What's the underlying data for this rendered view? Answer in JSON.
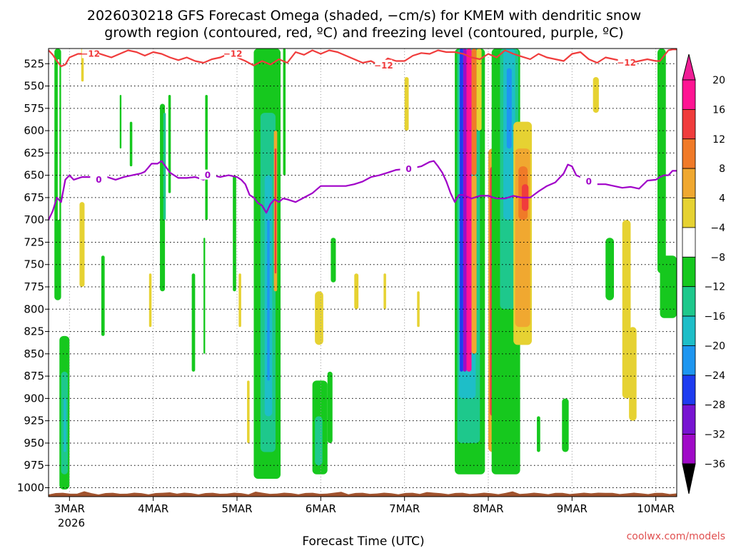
{
  "chart_data": {
    "type": "heatmap",
    "title_line1": "2026030218 GFS Forecast Omega (shaded, −cm/s) for KMEM with dendritic snow",
    "title_line2": "growth region (contoured, red, ºC) and freezing level (contoured, purple, ºC)",
    "xlabel": "Forecast Time (UTC)",
    "credit": "coolwx.com/models",
    "x_day_range": [
      2.75,
      10.25
    ],
    "y_range_hpa": [
      508,
      1010
    ],
    "y_ticks": [
      {
        "value": 525,
        "label": "525"
      },
      {
        "value": 550,
        "label": "550"
      },
      {
        "value": 575,
        "label": "575"
      },
      {
        "value": 600,
        "label": "600"
      },
      {
        "value": 625,
        "label": "625"
      },
      {
        "value": 650,
        "label": "650"
      },
      {
        "value": 675,
        "label": "675"
      },
      {
        "value": 700,
        "label": "700"
      },
      {
        "value": 725,
        "label": "725"
      },
      {
        "value": 750,
        "label": "750"
      },
      {
        "value": 775,
        "label": "775"
      },
      {
        "value": 800,
        "label": "800"
      },
      {
        "value": 825,
        "label": "825"
      },
      {
        "value": 850,
        "label": "850"
      },
      {
        "value": 875,
        "label": "875"
      },
      {
        "value": 900,
        "label": "900"
      },
      {
        "value": 925,
        "label": "925"
      },
      {
        "value": 950,
        "label": "950"
      },
      {
        "value": 975,
        "label": "975"
      },
      {
        "value": 1000,
        "label": "1000"
      }
    ],
    "x_ticks": [
      {
        "day": 3,
        "label": "3MAR"
      },
      {
        "day": 4,
        "label": "4MAR"
      },
      {
        "day": 5,
        "label": "5MAR"
      },
      {
        "day": 6,
        "label": "6MAR"
      },
      {
        "day": 7,
        "label": "7MAR"
      },
      {
        "day": 8,
        "label": "8MAR"
      },
      {
        "day": 9,
        "label": "9MAR"
      },
      {
        "day": 10,
        "label": "10MAR"
      }
    ],
    "x_year_label": "2026",
    "colorbar": {
      "labels": [
        "20",
        "16",
        "12",
        "8",
        "4",
        "−4",
        "−8",
        "−12",
        "−16",
        "−20",
        "−24",
        "−28",
        "−32",
        "−36"
      ],
      "colors": [
        "#ff1493",
        "#f03c3c",
        "#f07a28",
        "#f0a830",
        "#e6d232",
        "#ffffff",
        "#16c81e",
        "#1ec88c",
        "#1ebec8",
        "#1e96f0",
        "#1e3cf0",
        "#7814d2",
        "#a00ac8",
        "#a0a0a0"
      ],
      "top_arrow_color": "#f01e96",
      "bottom_arrow_color": "#000000"
    },
    "freezing_level": {
      "name": "freezing level (0 ºC, purple)",
      "color": "#a000c8",
      "label": "0",
      "label_days": [
        3.35,
        4.65,
        7.05,
        9.2
      ],
      "days": [
        2.75,
        2.8,
        2.85,
        2.9,
        2.95,
        3.0,
        3.05,
        3.15,
        3.25,
        3.35,
        3.45,
        3.55,
        3.65,
        3.75,
        3.85,
        3.9,
        3.98,
        4.05,
        4.1,
        4.2,
        4.3,
        4.4,
        4.5,
        4.6,
        4.7,
        4.8,
        4.9,
        5.0,
        5.05,
        5.1,
        5.15,
        5.2,
        5.25,
        5.3,
        5.35,
        5.4,
        5.45,
        5.5,
        5.55,
        5.6,
        5.7,
        5.8,
        5.9,
        6.0,
        6.1,
        6.2,
        6.3,
        6.4,
        6.5,
        6.6,
        6.7,
        6.8,
        6.9,
        7.0,
        7.1,
        7.2,
        7.3,
        7.35,
        7.4,
        7.45,
        7.5,
        7.55,
        7.6,
        7.65,
        7.7,
        7.8,
        7.9,
        8.0,
        8.1,
        8.2,
        8.3,
        8.4,
        8.5,
        8.6,
        8.7,
        8.8,
        8.9,
        8.95,
        9.0,
        9.05,
        9.1,
        9.2,
        9.3,
        9.4,
        9.5,
        9.6,
        9.7,
        9.8,
        9.9,
        10.0,
        10.05,
        10.1,
        10.15,
        10.2,
        10.25
      ],
      "hpa": [
        700,
        690,
        675,
        680,
        655,
        650,
        655,
        652,
        652,
        655,
        652,
        655,
        652,
        650,
        648,
        646,
        637,
        637,
        634,
        647,
        653,
        653,
        652,
        655,
        650,
        652,
        650,
        652,
        655,
        660,
        672,
        675,
        681,
        684,
        692,
        682,
        677,
        680,
        676,
        677,
        680,
        675,
        670,
        662,
        662,
        662,
        662,
        660,
        657,
        652,
        650,
        647,
        644,
        643,
        642,
        640,
        635,
        634,
        640,
        647,
        657,
        670,
        680,
        672,
        672,
        676,
        673,
        673,
        676,
        676,
        673,
        675,
        675,
        668,
        662,
        658,
        648,
        638,
        640,
        650,
        652,
        657,
        660,
        660,
        662,
        664,
        663,
        665,
        656,
        655,
        652,
        650,
        650,
        645,
        645
      ]
    },
    "dgz_minus12": {
      "name": "dendritic snow growth region (−12 ºC, red)",
      "color": "#f03c3c",
      "label": "−12",
      "label_days": [
        3.25,
        4.95,
        6.75,
        9.65
      ],
      "days": [
        2.75,
        2.8,
        2.85,
        2.9,
        2.95,
        3.0,
        3.1,
        3.2,
        3.3,
        3.4,
        3.5,
        3.6,
        3.7,
        3.8,
        3.9,
        4.0,
        4.1,
        4.2,
        4.3,
        4.4,
        4.5,
        4.6,
        4.7,
        4.8,
        4.9,
        5.0,
        5.1,
        5.2,
        5.3,
        5.4,
        5.5,
        5.6,
        5.7,
        5.8,
        5.9,
        6.0,
        6.1,
        6.2,
        6.3,
        6.4,
        6.5,
        6.6,
        6.7,
        6.8,
        6.9,
        7.0,
        7.1,
        7.2,
        7.3,
        7.4,
        7.5,
        7.6,
        7.7,
        7.8,
        7.9,
        8.0,
        8.1,
        8.2,
        8.3,
        8.4,
        8.5,
        8.6,
        8.7,
        8.8,
        8.9,
        9.0,
        9.1,
        9.2,
        9.3,
        9.4,
        9.5,
        9.6,
        9.7,
        9.8,
        9.9,
        10.0,
        10.05,
        10.1,
        10.15,
        10.2,
        10.25
      ],
      "hpa": [
        510,
        515,
        522,
        528,
        526,
        518,
        514,
        514,
        512,
        515,
        518,
        514,
        510,
        512,
        516,
        512,
        514,
        518,
        521,
        518,
        522,
        524,
        520,
        518,
        514,
        518,
        522,
        527,
        522,
        526,
        520,
        524,
        512,
        515,
        510,
        514,
        510,
        512,
        516,
        520,
        524,
        522,
        527,
        519,
        522,
        522,
        516,
        513,
        514,
        510,
        512,
        512,
        514,
        518,
        520,
        514,
        518,
        510,
        514,
        517,
        520,
        514,
        518,
        520,
        522,
        514,
        512,
        520,
        524,
        518,
        520,
        522,
        524,
        522,
        520,
        522,
        522,
        516,
        510,
        509,
        509
      ]
    },
    "omega_shading": [
      {
        "day0": 2.82,
        "day1": 2.9,
        "p_top": 508,
        "p_bot": 790,
        "value": -8
      },
      {
        "day0": 2.86,
        "day1": 2.88,
        "p_top": 520,
        "p_bot": 700,
        "value": -4
      },
      {
        "day0": 2.88,
        "day1": 3.0,
        "p_top": 830,
        "p_bot": 1002,
        "value": -8
      },
      {
        "day0": 2.9,
        "day1": 2.98,
        "p_top": 870,
        "p_bot": 985,
        "value": -12
      },
      {
        "day0": 2.93,
        "day1": 2.96,
        "p_top": 900,
        "p_bot": 960,
        "value": -16
      },
      {
        "day0": 3.12,
        "day1": 3.18,
        "p_top": 680,
        "p_bot": 775,
        "value": 4
      },
      {
        "day0": 3.14,
        "day1": 3.17,
        "p_top": 508,
        "p_bot": 545,
        "value": 4
      },
      {
        "day0": 3.38,
        "day1": 3.42,
        "p_top": 740,
        "p_bot": 830,
        "value": -8
      },
      {
        "day0": 3.6,
        "day1": 3.62,
        "p_top": 560,
        "p_bot": 620,
        "value": -8
      },
      {
        "day0": 3.72,
        "day1": 3.75,
        "p_top": 590,
        "p_bot": 640,
        "value": -8
      },
      {
        "day0": 3.95,
        "day1": 3.98,
        "p_top": 760,
        "p_bot": 820,
        "value": 4
      },
      {
        "day0": 4.08,
        "day1": 4.14,
        "p_top": 570,
        "p_bot": 780,
        "value": -8
      },
      {
        "day0": 4.12,
        "day1": 4.15,
        "p_top": 580,
        "p_bot": 700,
        "value": -12
      },
      {
        "day0": 4.18,
        "day1": 4.21,
        "p_top": 560,
        "p_bot": 670,
        "value": -8
      },
      {
        "day0": 4.46,
        "day1": 4.5,
        "p_top": 760,
        "p_bot": 870,
        "value": -8
      },
      {
        "day0": 4.6,
        "day1": 4.62,
        "p_top": 720,
        "p_bot": 850,
        "value": -8
      },
      {
        "day0": 4.62,
        "day1": 4.65,
        "p_top": 560,
        "p_bot": 700,
        "value": -8
      },
      {
        "day0": 4.95,
        "day1": 4.99,
        "p_top": 650,
        "p_bot": 780,
        "value": -8
      },
      {
        "day0": 5.02,
        "day1": 5.05,
        "p_top": 760,
        "p_bot": 820,
        "value": 4
      },
      {
        "day0": 5.12,
        "day1": 5.15,
        "p_top": 880,
        "p_bot": 950,
        "value": 4
      },
      {
        "day0": 5.2,
        "day1": 5.52,
        "p_top": 508,
        "p_bot": 990,
        "value": -8
      },
      {
        "day0": 5.28,
        "day1": 5.46,
        "p_top": 580,
        "p_bot": 960,
        "value": -12
      },
      {
        "day0": 5.33,
        "day1": 5.42,
        "p_top": 650,
        "p_bot": 920,
        "value": -16
      },
      {
        "day0": 5.36,
        "day1": 5.39,
        "p_top": 700,
        "p_bot": 880,
        "value": -20
      },
      {
        "day0": 5.44,
        "day1": 5.48,
        "p_top": 600,
        "p_bot": 780,
        "value": 8
      },
      {
        "day0": 5.45,
        "day1": 5.47,
        "p_top": 620,
        "p_bot": 760,
        "value": 16
      },
      {
        "day0": 5.55,
        "day1": 5.58,
        "p_top": 508,
        "p_bot": 650,
        "value": -8
      },
      {
        "day0": 5.93,
        "day1": 6.03,
        "p_top": 780,
        "p_bot": 840,
        "value": 4
      },
      {
        "day0": 5.9,
        "day1": 6.08,
        "p_top": 880,
        "p_bot": 985,
        "value": -8
      },
      {
        "day0": 5.93,
        "day1": 6.02,
        "p_top": 920,
        "p_bot": 975,
        "value": -12
      },
      {
        "day0": 6.08,
        "day1": 6.14,
        "p_top": 870,
        "p_bot": 950,
        "value": -8
      },
      {
        "day0": 6.12,
        "day1": 6.18,
        "p_top": 720,
        "p_bot": 770,
        "value": -8
      },
      {
        "day0": 6.4,
        "day1": 6.45,
        "p_top": 760,
        "p_bot": 800,
        "value": 4
      },
      {
        "day0": 6.75,
        "day1": 6.78,
        "p_top": 760,
        "p_bot": 800,
        "value": 4
      },
      {
        "day0": 7.0,
        "day1": 7.05,
        "p_top": 540,
        "p_bot": 600,
        "value": 4
      },
      {
        "day0": 7.15,
        "day1": 7.18,
        "p_top": 780,
        "p_bot": 820,
        "value": 4
      },
      {
        "day0": 7.6,
        "day1": 7.96,
        "p_top": 508,
        "p_bot": 985,
        "value": -8
      },
      {
        "day0": 7.63,
        "day1": 7.9,
        "p_top": 508,
        "p_bot": 950,
        "value": -12
      },
      {
        "day0": 7.65,
        "day1": 7.85,
        "p_top": 508,
        "p_bot": 900,
        "value": -16
      },
      {
        "day0": 7.66,
        "day1": 7.7,
        "p_top": 508,
        "p_bot": 870,
        "value": -24
      },
      {
        "day0": 7.7,
        "day1": 7.74,
        "p_top": 508,
        "p_bot": 870,
        "value": -32
      },
      {
        "day0": 7.74,
        "day1": 7.8,
        "p_top": 508,
        "p_bot": 870,
        "value": 20
      },
      {
        "day0": 7.8,
        "day1": 7.86,
        "p_top": 508,
        "p_bot": 650,
        "value": 12
      },
      {
        "day0": 7.8,
        "day1": 7.86,
        "p_top": 650,
        "p_bot": 850,
        "value": 8
      },
      {
        "day0": 7.86,
        "day1": 7.92,
        "p_top": 508,
        "p_bot": 600,
        "value": 4
      },
      {
        "day0": 8.0,
        "day1": 8.12,
        "p_top": 620,
        "p_bot": 960,
        "value": 8
      },
      {
        "day0": 8.02,
        "day1": 8.1,
        "p_top": 640,
        "p_bot": 920,
        "value": 16
      },
      {
        "day0": 8.04,
        "day1": 8.09,
        "p_top": 660,
        "p_bot": 900,
        "value": 20
      },
      {
        "day0": 8.04,
        "day1": 8.38,
        "p_top": 508,
        "p_bot": 985,
        "value": -8
      },
      {
        "day0": 8.14,
        "day1": 8.36,
        "p_top": 508,
        "p_bot": 800,
        "value": -12
      },
      {
        "day0": 8.18,
        "day1": 8.32,
        "p_top": 508,
        "p_bot": 700,
        "value": -16
      },
      {
        "day0": 8.22,
        "day1": 8.28,
        "p_top": 530,
        "p_bot": 620,
        "value": -20
      },
      {
        "day0": 8.3,
        "day1": 8.52,
        "p_top": 590,
        "p_bot": 840,
        "value": 4
      },
      {
        "day0": 8.32,
        "day1": 8.5,
        "p_top": 620,
        "p_bot": 820,
        "value": 8
      },
      {
        "day0": 8.36,
        "day1": 8.47,
        "p_top": 640,
        "p_bot": 700,
        "value": 12
      },
      {
        "day0": 8.4,
        "day1": 8.48,
        "p_top": 660,
        "p_bot": 690,
        "value": 16
      },
      {
        "day0": 8.58,
        "day1": 8.62,
        "p_top": 920,
        "p_bot": 960,
        "value": -8
      },
      {
        "day0": 8.88,
        "day1": 8.96,
        "p_top": 900,
        "p_bot": 960,
        "value": -8
      },
      {
        "day0": 9.25,
        "day1": 9.32,
        "p_top": 540,
        "p_bot": 580,
        "value": 4
      },
      {
        "day0": 9.4,
        "day1": 9.5,
        "p_top": 720,
        "p_bot": 790,
        "value": -8
      },
      {
        "day0": 9.6,
        "day1": 9.7,
        "p_top": 700,
        "p_bot": 900,
        "value": 4
      },
      {
        "day0": 9.68,
        "day1": 9.77,
        "p_top": 820,
        "p_bot": 925,
        "value": 4
      },
      {
        "day0": 10.02,
        "day1": 10.12,
        "p_top": 508,
        "p_bot": 760,
        "value": -8
      },
      {
        "day0": 10.05,
        "day1": 10.25,
        "p_top": 740,
        "p_bot": 810,
        "value": -8
      }
    ]
  }
}
